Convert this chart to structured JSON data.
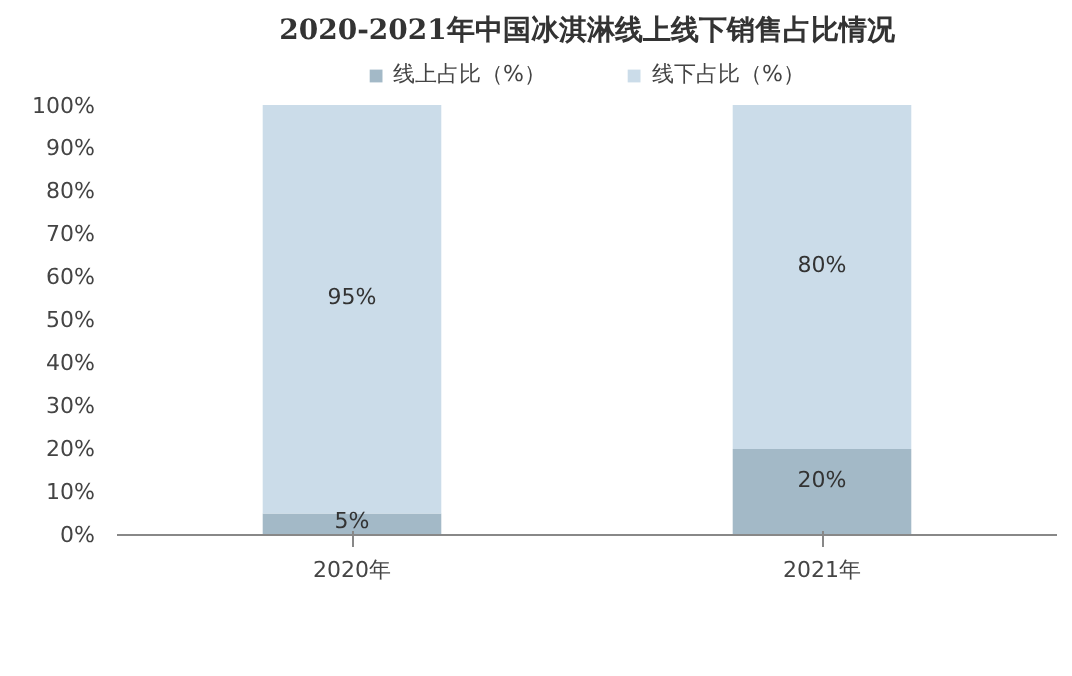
{
  "chart_data": {
    "type": "bar",
    "title": "2020-2021年中国冰淇淋线上线下销售占比情况",
    "categories": [
      "2020年",
      "2021年"
    ],
    "stacked": true,
    "series": [
      {
        "name": "线上占比（%）",
        "color": "#a3b9c7",
        "values": [
          5,
          20
        ],
        "value_labels": [
          "5%",
          "20%"
        ]
      },
      {
        "name": "线下占比（%）",
        "color": "#cbdce9",
        "values": [
          95,
          80
        ],
        "value_labels": [
          "95%",
          "80%"
        ]
      }
    ],
    "ylim": [
      0,
      100
    ],
    "yticks": [
      {
        "value": 0,
        "label": "0%"
      },
      {
        "value": 10,
        "label": "10%"
      },
      {
        "value": 20,
        "label": "20%"
      },
      {
        "value": 30,
        "label": "30%"
      },
      {
        "value": 40,
        "label": "40%"
      },
      {
        "value": 50,
        "label": "50%"
      },
      {
        "value": 60,
        "label": "60%"
      },
      {
        "value": 70,
        "label": "70%"
      },
      {
        "value": 80,
        "label": "80%"
      },
      {
        "value": 90,
        "label": "90%"
      },
      {
        "value": 100,
        "label": "100%"
      }
    ],
    "legend": "top",
    "grid": false
  }
}
